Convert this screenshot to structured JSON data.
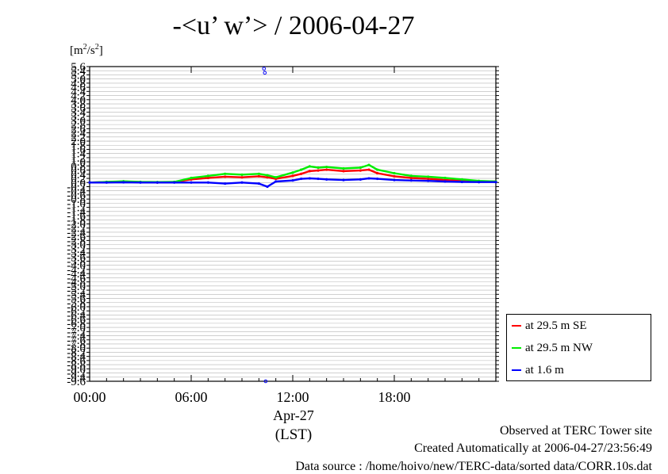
{
  "title": "-<u’ w’> / 2006-04-27",
  "unit_label": "[m",
  "unit_sup": "2",
  "unit_mid": "/s",
  "unit_sup2": "2",
  "unit_end": "]",
  "footer": {
    "line1": "Observed at TERC Tower site",
    "line2": "Created Automatically at 2006-04-27/23:56:49",
    "line3": "Data source : /home/hoivo/new/TERC-data/sorted  data/CORR.10s.dat"
  },
  "xaxis": {
    "date": "Apr-27",
    "tz": "(LST)"
  },
  "legend": [
    {
      "label": "at 29.5 m SE",
      "color": "#ff0000"
    },
    {
      "label": "at 29.5 m NW",
      "color": "#00ee00"
    },
    {
      "label": "at 1.6 m",
      "color": "#0000ff"
    }
  ],
  "chart_data": {
    "type": "line",
    "title": "-<u’ w’> / 2006-04-27",
    "ylabel": "[m2/s2]",
    "xlabel": "(LST)",
    "x_unit": "hour of day",
    "xlim": [
      0,
      24
    ],
    "ylim": [
      -9.6,
      5.6
    ],
    "yticks": [
      5.6,
      5.4,
      5.2,
      5.0,
      4.8,
      4.6,
      4.4,
      4.2,
      4.0,
      3.8,
      3.6,
      3.4,
      3.2,
      3.0,
      2.8,
      2.6,
      2.4,
      2.2,
      2.0,
      1.8,
      1.6,
      1.4,
      1.2,
      1.0,
      0.8,
      0.6,
      0.4,
      0.2,
      0.0,
      -0.2,
      -0.4,
      -0.6,
      -0.8,
      -1.0,
      -1.2,
      -1.4,
      -1.6,
      -1.8,
      -2.0,
      -2.2,
      -2.4,
      -2.6,
      -2.8,
      -3.0,
      -3.2,
      -3.4,
      -3.6,
      -3.8,
      -4.0,
      -4.2,
      -4.4,
      -4.6,
      -4.8,
      -5.0,
      -5.2,
      -5.4,
      -5.6,
      -5.8,
      -6.0,
      -6.2,
      -6.4,
      -6.6,
      -6.8,
      -7.0,
      -7.2,
      -7.4,
      -7.6,
      -7.8,
      -8.0,
      -8.2,
      -8.4,
      -8.6,
      -8.8,
      -9.0,
      -9.2,
      -9.4,
      -9.6
    ],
    "xticks": [
      {
        "value": 0,
        "label": "00:00"
      },
      {
        "value": 6,
        "label": "06:00"
      },
      {
        "value": 12,
        "label": "12:00"
      },
      {
        "value": 18,
        "label": "18:00"
      }
    ],
    "grid": true,
    "legend_position": "right-bottom",
    "x": [
      0,
      1,
      2,
      3,
      4,
      5,
      6,
      7,
      8,
      9,
      10,
      10.5,
      11,
      12,
      12.5,
      13,
      13.5,
      14,
      15,
      16,
      16.5,
      17,
      18,
      19,
      20,
      21,
      22,
      23,
      24
    ],
    "series": [
      {
        "name": "at 29.5 m SE",
        "color": "#ff0000",
        "values": [
          0.0,
          0.02,
          0.05,
          0.02,
          0.0,
          0.02,
          0.15,
          0.22,
          0.28,
          0.25,
          0.3,
          0.25,
          0.18,
          0.32,
          0.42,
          0.55,
          0.58,
          0.62,
          0.55,
          0.58,
          0.62,
          0.45,
          0.3,
          0.22,
          0.18,
          0.12,
          0.08,
          0.05,
          0.05
        ]
      },
      {
        "name": "at 29.5 m NW",
        "color": "#00ee00",
        "values": [
          0.0,
          0.03,
          0.06,
          0.03,
          0.02,
          0.03,
          0.22,
          0.32,
          0.42,
          0.38,
          0.42,
          0.35,
          0.25,
          0.48,
          0.62,
          0.78,
          0.72,
          0.75,
          0.68,
          0.72,
          0.85,
          0.62,
          0.45,
          0.32,
          0.28,
          0.22,
          0.15,
          0.08,
          0.05
        ]
      },
      {
        "name": "at 1.6 m",
        "color": "#0000ff",
        "values": [
          0.0,
          0.0,
          0.01,
          0.0,
          0.0,
          0.0,
          0.0,
          0.0,
          -0.05,
          0.0,
          -0.05,
          -0.2,
          0.05,
          0.1,
          0.18,
          0.2,
          0.18,
          0.15,
          0.12,
          0.15,
          0.2,
          0.18,
          0.12,
          0.1,
          0.08,
          0.05,
          0.03,
          0.02,
          0.02
        ]
      }
    ],
    "outliers": [
      {
        "series": "at 1.6 m",
        "x": 10.3,
        "y": 5.5
      },
      {
        "series": "at 1.6 m",
        "x": 10.35,
        "y": 5.3
      },
      {
        "series": "at 1.6 m",
        "x": 10.4,
        "y": -9.6
      }
    ]
  }
}
